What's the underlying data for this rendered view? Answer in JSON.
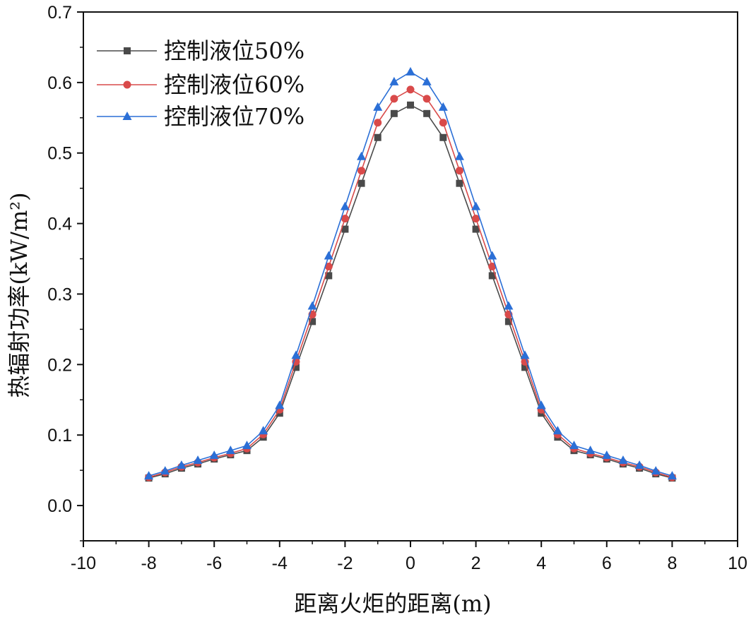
{
  "chart_data": {
    "type": "line",
    "xlabel": "距离火炬的距离(m)",
    "ylabel": "热辐射功率(kW/m²)",
    "xlim": [
      -10,
      10
    ],
    "ylim": [
      -0.05,
      0.7
    ],
    "xticks": [
      -10,
      -8,
      -6,
      -4,
      -2,
      0,
      2,
      4,
      6,
      8,
      10
    ],
    "xtick_labels": [
      "-10",
      "-8",
      "-6",
      "-4",
      "-2",
      "0",
      "2",
      "4",
      "6",
      "8",
      "10"
    ],
    "yticks": [
      0.0,
      0.1,
      0.2,
      0.3,
      0.4,
      0.5,
      0.6,
      0.7
    ],
    "ytick_labels": [
      "0.0",
      "0.1",
      "0.2",
      "0.3",
      "0.4",
      "0.5",
      "0.6",
      "0.7"
    ],
    "grid": false,
    "legend_position": "top-left",
    "x": [
      -8,
      -7.5,
      -7,
      -6.5,
      -6,
      -5.5,
      -5,
      -4.5,
      -4,
      -3.5,
      -3,
      -2.5,
      -2,
      -1.5,
      -1,
      -0.5,
      0,
      0.5,
      1,
      1.5,
      2,
      2.5,
      3,
      3.5,
      4,
      4.5,
      5,
      5.5,
      6,
      6.5,
      7,
      7.5,
      8
    ],
    "series": [
      {
        "name": "控制液位50%",
        "color": "#4a4a4a",
        "marker": "square",
        "values": [
          0.039,
          0.045,
          0.053,
          0.059,
          0.066,
          0.072,
          0.078,
          0.097,
          0.131,
          0.196,
          0.261,
          0.326,
          0.392,
          0.457,
          0.522,
          0.556,
          0.568,
          0.556,
          0.522,
          0.457,
          0.392,
          0.326,
          0.261,
          0.196,
          0.131,
          0.097,
          0.078,
          0.072,
          0.066,
          0.059,
          0.053,
          0.045,
          0.039
        ]
      },
      {
        "name": "控制液位60%",
        "color": "#d94a4a",
        "marker": "circle",
        "values": [
          0.04,
          0.047,
          0.055,
          0.061,
          0.068,
          0.074,
          0.081,
          0.101,
          0.136,
          0.204,
          0.271,
          0.339,
          0.407,
          0.475,
          0.543,
          0.577,
          0.59,
          0.577,
          0.543,
          0.475,
          0.407,
          0.339,
          0.271,
          0.204,
          0.136,
          0.101,
          0.081,
          0.074,
          0.068,
          0.061,
          0.055,
          0.047,
          0.04
        ]
      },
      {
        "name": "控制液位70%",
        "color": "#2b6fd6",
        "marker": "triangle",
        "values": [
          0.042,
          0.049,
          0.057,
          0.064,
          0.071,
          0.078,
          0.085,
          0.106,
          0.142,
          0.213,
          0.283,
          0.354,
          0.424,
          0.495,
          0.565,
          0.601,
          0.615,
          0.601,
          0.565,
          0.495,
          0.424,
          0.354,
          0.283,
          0.213,
          0.142,
          0.106,
          0.085,
          0.078,
          0.071,
          0.064,
          0.057,
          0.049,
          0.042
        ]
      }
    ]
  }
}
